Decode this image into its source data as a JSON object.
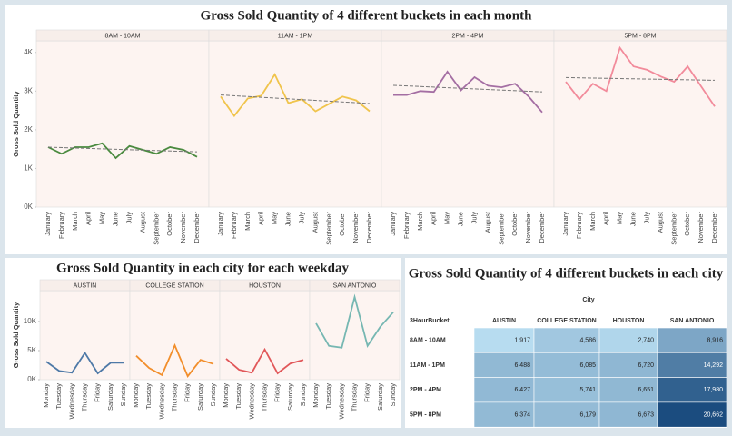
{
  "chart_data": [
    {
      "type": "line",
      "title": "Gross Sold Quantity of 4 different buckets in each month",
      "y_label": "Gross Sold Quantity",
      "categories": [
        "January",
        "February",
        "March",
        "April",
        "May",
        "June",
        "July",
        "August",
        "September",
        "October",
        "November",
        "December"
      ],
      "ylim": [
        0,
        4300
      ],
      "yticks": [
        {
          "value": 0,
          "label": "0K"
        },
        {
          "value": 1000,
          "label": "1K"
        },
        {
          "value": 2000,
          "label": "2K"
        },
        {
          "value": 3000,
          "label": "3K"
        },
        {
          "value": 4000,
          "label": "4K"
        }
      ],
      "grid": false,
      "series": [
        {
          "name": "8AM - 10AM",
          "color": "#4a8a3f",
          "values": [
            1550,
            1380,
            1550,
            1550,
            1650,
            1270,
            1580,
            1480,
            1380,
            1550,
            1480,
            1300
          ],
          "trend": [
            1550,
            1430
          ]
        },
        {
          "name": "11AM - 1PM",
          "color": "#f0c44c",
          "values": [
            2860,
            2360,
            2810,
            2880,
            3430,
            2690,
            2790,
            2480,
            2670,
            2860,
            2760,
            2480
          ],
          "trend": [
            2900,
            2680
          ]
        },
        {
          "name": "2PM - 4PM",
          "color": "#a46ea3",
          "values": [
            2900,
            2900,
            3000,
            2980,
            3500,
            3020,
            3360,
            3140,
            3100,
            3190,
            2860,
            2450
          ],
          "trend": [
            3150,
            2980
          ]
        },
        {
          "name": "5PM - 8PM",
          "color": "#f28b9b",
          "values": [
            3240,
            2790,
            3190,
            3000,
            4120,
            3640,
            3550,
            3380,
            3240,
            3640,
            3120,
            2600
          ],
          "trend": [
            3350,
            3280
          ]
        }
      ]
    },
    {
      "type": "line",
      "title": "Gross Sold Quantity in each city for each weekday",
      "y_label": "Gross Sold Quantity",
      "categories": [
        "Monday",
        "Tuesday",
        "Wednesday",
        "Thursday",
        "Friday",
        "Saturday",
        "Sunday"
      ],
      "ylim": [
        0,
        15300
      ],
      "yticks": [
        {
          "value": 0,
          "label": "0K"
        },
        {
          "value": 5000,
          "label": "5K"
        },
        {
          "value": 10000,
          "label": "10K"
        }
      ],
      "grid": false,
      "series": [
        {
          "name": "AUSTIN",
          "color": "#4e79a7",
          "values": [
            3100,
            1500,
            1200,
            4600,
            1100,
            2900,
            2900
          ]
        },
        {
          "name": "COLLEGE STATION",
          "color": "#f28e2b",
          "values": [
            4100,
            2000,
            800,
            5900,
            600,
            3400,
            2700
          ]
        },
        {
          "name": "HOUSTON",
          "color": "#e15759",
          "values": [
            3600,
            1700,
            1200,
            5200,
            1100,
            2800,
            3400
          ]
        },
        {
          "name": "SAN ANTONIO",
          "color": "#76b7b2",
          "values": [
            9700,
            5800,
            5500,
            14200,
            5800,
            9100,
            11600
          ]
        }
      ]
    },
    {
      "type": "heatmap",
      "title": "Gross Sold Quantity of 4 different buckets in each city",
      "x_label": "City",
      "y_label": "3HourBucket",
      "categories": [
        "AUSTIN",
        "COLLEGE STATION",
        "HOUSTON",
        "SAN ANTONIO"
      ],
      "rows": [
        "8AM - 10AM",
        "11AM - 1PM",
        "2PM - 4PM",
        "5PM - 8PM"
      ],
      "values": [
        [
          1917,
          4586,
          2740,
          8916
        ],
        [
          6488,
          6085,
          6720,
          14292
        ],
        [
          6427,
          5741,
          6651,
          17980
        ],
        [
          6374,
          6179,
          6673,
          20662
        ]
      ],
      "value_labels": [
        [
          "1,917",
          "4,586",
          "2,740",
          "8,916"
        ],
        [
          "6,488",
          "6,085",
          "6,720",
          "14,292"
        ],
        [
          "6,427",
          "5,741",
          "6,651",
          "17,980"
        ],
        [
          "6,374",
          "6,179",
          "6,673",
          "20,662"
        ]
      ],
      "color_range": [
        "#b7dcf0",
        "#1b4c7f"
      ]
    }
  ]
}
